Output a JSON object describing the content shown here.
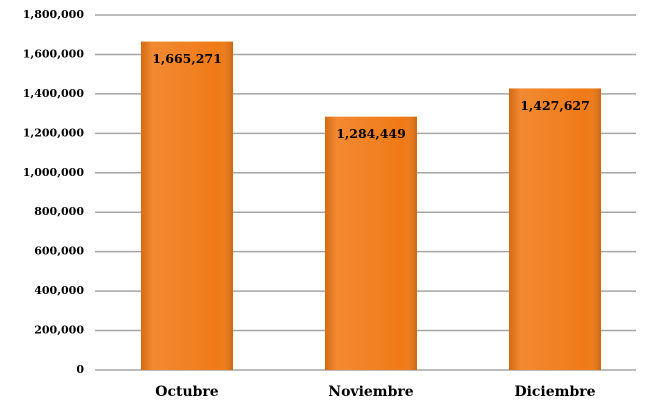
{
  "chart_data": {
    "type": "bar",
    "categories": [
      "Octubre",
      "Noviembre",
      "Diciembre"
    ],
    "values": [
      1665271,
      1284449,
      1427627
    ],
    "value_labels": [
      "1,665,271",
      "1,284,449",
      "1,427,627"
    ],
    "color": "#f07a16",
    "ylim": [
      0,
      1800000
    ],
    "yticks": [
      0,
      {
        "value": 200000,
        "label": "200,000"
      },
      {
        "value": 400000,
        "label": "400,000"
      },
      {
        "value": 600000,
        "label": "600,000"
      },
      {
        "value": 800000,
        "label": "800,000"
      },
      {
        "value": 1000000,
        "label": "1,000,000"
      },
      {
        "value": 1200000,
        "label": "1,200,000"
      },
      {
        "value": 1400000,
        "label": "1,400,000"
      },
      {
        "value": 1600000,
        "label": "1,600,000"
      },
      {
        "value": 1800000,
        "label": "1,800,000"
      }
    ],
    "grid": true
  }
}
